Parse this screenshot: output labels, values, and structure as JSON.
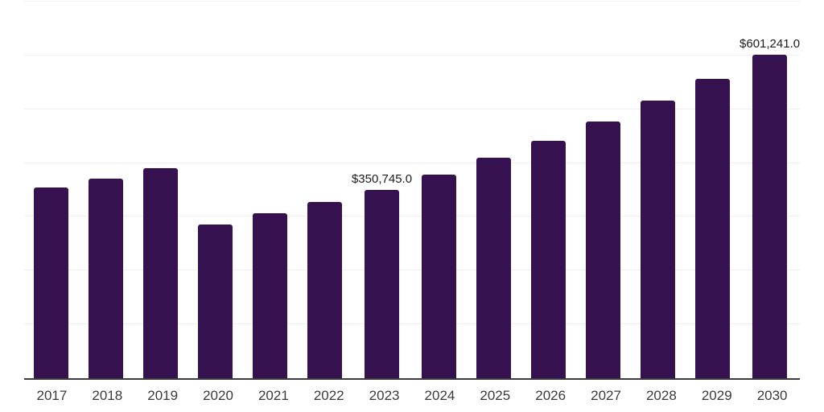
{
  "chart_data": {
    "type": "bar",
    "title": "",
    "xlabel": "",
    "ylabel": "",
    "categories": [
      "2017",
      "2018",
      "2019",
      "2020",
      "2021",
      "2022",
      "2023",
      "2024",
      "2025",
      "2026",
      "2027",
      "2028",
      "2029",
      "2030"
    ],
    "values": [
      354400,
      370500,
      390300,
      285400,
      306000,
      327500,
      350745,
      378800,
      409100,
      441900,
      477200,
      515400,
      556700,
      601241
    ],
    "annotations": [
      {
        "category": "2023",
        "text": "$350,745.0"
      },
      {
        "category": "2030",
        "text": "$601,241.0"
      }
    ],
    "ylim": [
      0,
      700000
    ],
    "grid_interval": 100000,
    "grid_on": true,
    "legend": "none",
    "colors": {
      "bar_fill": "#361150",
      "gridline": "#F0F0F0",
      "axis_line": "#3C3C3C",
      "tick_label": "#3A3A3A",
      "value_label": "#1A1A1A",
      "background": "#FFFFFF"
    }
  }
}
